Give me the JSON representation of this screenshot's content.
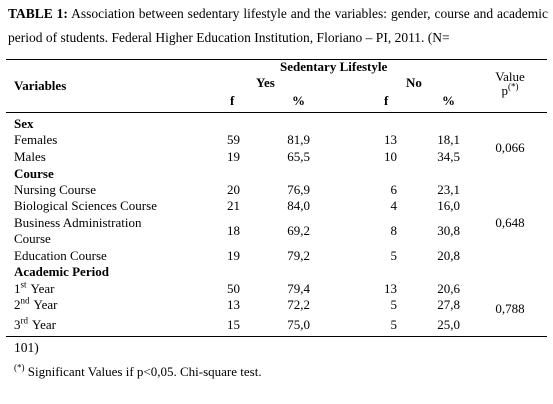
{
  "caption": {
    "label": "TABLE 1:",
    "text": "Association between sedentary lifestyle and the variables: gender, course and academic period of students. Federal Higher Education Institution, Floriano – PI, 2011. (N=",
    "continuation": "101)"
  },
  "header": {
    "variables": "Variables",
    "group": "Sedentary Lifestyle",
    "yes": "Yes",
    "no": "No",
    "f_yes": "f",
    "pct_yes": "%",
    "f_no": "f",
    "pct_no": "%",
    "value": "Value",
    "p": "p",
    "p_mark": "(*)"
  },
  "sections": [
    {
      "title": "Sex",
      "p_value": "0,066",
      "rows": [
        {
          "label": "Females",
          "values": [
            "59",
            "81,9",
            "13",
            "18,1"
          ]
        },
        {
          "label": "Males",
          "values": [
            "19",
            "65,5",
            "10",
            "34,5"
          ]
        }
      ]
    },
    {
      "title": "Course",
      "p_value": "0,648",
      "rows": [
        {
          "label": "Nursing Course",
          "values": [
            "20",
            "76,9",
            "6",
            "23,1"
          ]
        },
        {
          "label": "Biological Sciences Course",
          "values": [
            "21",
            "84,0",
            "4",
            "16,0"
          ]
        },
        {
          "label": "Business Administration Course",
          "values": [
            "18",
            "69,2",
            "8",
            "30,8"
          ]
        },
        {
          "label": "Education Course",
          "values": [
            "19",
            "79,2",
            "5",
            "20,8"
          ]
        }
      ]
    },
    {
      "title": "Academic Period",
      "p_value": "0,788",
      "rows": [
        {
          "label": "1",
          "label_sup": "st",
          "label_rest": "Year",
          "values": [
            "50",
            "79,4",
            "13",
            "20,6"
          ]
        },
        {
          "label": "2",
          "label_sup": "nd",
          "label_rest": "Year",
          "values": [
            "13",
            "72,2",
            "5",
            "27,8"
          ]
        },
        {
          "label": "3",
          "label_sup": "rd",
          "label_rest": "Year",
          "values": [
            "15",
            "75,0",
            "5",
            "25,0"
          ]
        }
      ]
    }
  ],
  "footnote": {
    "mark": "(*)",
    "text": "Significant Values if p<0,05. Chi-square test."
  }
}
